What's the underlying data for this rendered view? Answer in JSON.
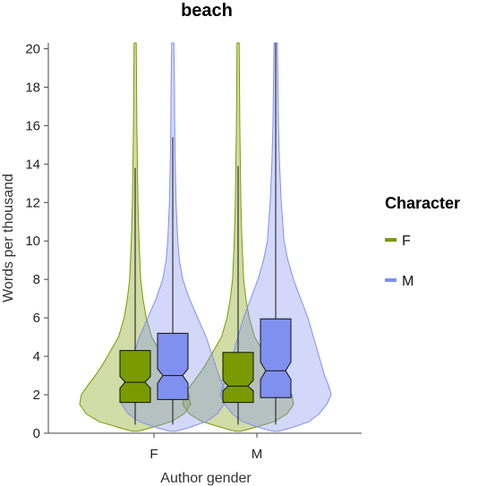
{
  "chart_data": {
    "type": "violin",
    "title": "beach",
    "xlabel": "Author gender",
    "ylabel": "Words per thousand",
    "ylim": [
      0,
      20.3
    ],
    "yticks": [
      0,
      2,
      4,
      6,
      8,
      10,
      12,
      14,
      16,
      18,
      20
    ],
    "categories": [
      "F",
      "M"
    ],
    "legend": {
      "title": "Character",
      "position": "right",
      "entries": [
        {
          "label": "F",
          "color": "#7a9a01"
        },
        {
          "label": "M",
          "color": "#8090f0"
        }
      ]
    },
    "series": [
      {
        "name": "F",
        "color": "#7a9a01",
        "groups": [
          {
            "category": "F",
            "box": {
              "q1": 1.6,
              "median": 2.65,
              "q3": 4.3,
              "notch_low": 2.35,
              "notch_high": 2.95,
              "whisker_low": 0.45,
              "whisker_high": 13.8
            },
            "violin": [
              [
                0.1,
                0.05
              ],
              [
                0.3,
                0.3
              ],
              [
                0.6,
                0.65
              ],
              [
                1.0,
                0.88
              ],
              [
                1.5,
                1.0
              ],
              [
                2.0,
                0.97
              ],
              [
                2.5,
                0.85
              ],
              [
                3.0,
                0.72
              ],
              [
                3.5,
                0.6
              ],
              [
                4.0,
                0.5
              ],
              [
                4.5,
                0.4
              ],
              [
                5.0,
                0.3
              ],
              [
                6.0,
                0.2
              ],
              [
                7.0,
                0.14
              ],
              [
                8.0,
                0.1
              ],
              [
                10.0,
                0.07
              ],
              [
                12.0,
                0.05
              ],
              [
                14.0,
                0.04
              ],
              [
                16.0,
                0.03
              ],
              [
                18.0,
                0.025
              ],
              [
                20.3,
                0.02
              ]
            ]
          },
          {
            "category": "M",
            "box": {
              "q1": 1.6,
              "median": 2.45,
              "q3": 4.2,
              "notch_low": 2.2,
              "notch_high": 2.75,
              "whisker_low": 0.45,
              "whisker_high": 13.9
            },
            "violin": [
              [
                0.1,
                0.05
              ],
              [
                0.3,
                0.3
              ],
              [
                0.6,
                0.65
              ],
              [
                1.0,
                0.88
              ],
              [
                1.5,
                1.0
              ],
              [
                2.0,
                0.97
              ],
              [
                2.5,
                0.85
              ],
              [
                3.0,
                0.72
              ],
              [
                3.5,
                0.6
              ],
              [
                4.0,
                0.5
              ],
              [
                4.5,
                0.4
              ],
              [
                5.0,
                0.3
              ],
              [
                6.0,
                0.2
              ],
              [
                7.0,
                0.14
              ],
              [
                8.0,
                0.1
              ],
              [
                10.0,
                0.07
              ],
              [
                12.0,
                0.05
              ],
              [
                14.0,
                0.04
              ],
              [
                16.0,
                0.03
              ],
              [
                18.0,
                0.025
              ],
              [
                20.3,
                0.02
              ]
            ]
          }
        ]
      },
      {
        "name": "M",
        "color": "#8090f0",
        "groups": [
          {
            "category": "F",
            "box": {
              "q1": 1.75,
              "median": 3.0,
              "q3": 5.2,
              "notch_low": 2.6,
              "notch_high": 3.35,
              "whisker_low": 0.45,
              "whisker_high": 15.4
            },
            "violin": [
              [
                0.1,
                0.05
              ],
              [
                0.3,
                0.3
              ],
              [
                0.6,
                0.6
              ],
              [
                1.0,
                0.8
              ],
              [
                1.5,
                0.92
              ],
              [
                2.0,
                0.95
              ],
              [
                2.5,
                0.9
              ],
              [
                3.0,
                0.83
              ],
              [
                4.0,
                0.72
              ],
              [
                5.0,
                0.6
              ],
              [
                6.0,
                0.45
              ],
              [
                7.0,
                0.3
              ],
              [
                8.0,
                0.18
              ],
              [
                9.0,
                0.12
              ],
              [
                10.0,
                0.09
              ],
              [
                12.0,
                0.06
              ],
              [
                14.0,
                0.045
              ],
              [
                16.0,
                0.035
              ],
              [
                18.0,
                0.03
              ],
              [
                20.3,
                0.02
              ]
            ]
          },
          {
            "category": "M",
            "box": {
              "q1": 1.85,
              "median": 3.25,
              "q3": 5.95,
              "notch_low": 2.8,
              "notch_high": 3.7,
              "whisker_low": 0.45,
              "whisker_high": 20.3
            },
            "violin": [
              [
                0.1,
                0.05
              ],
              [
                0.3,
                0.3
              ],
              [
                0.6,
                0.6
              ],
              [
                1.0,
                0.78
              ],
              [
                1.5,
                0.92
              ],
              [
                2.0,
                1.0
              ],
              [
                2.5,
                0.95
              ],
              [
                3.0,
                0.88
              ],
              [
                4.0,
                0.78
              ],
              [
                5.0,
                0.68
              ],
              [
                6.0,
                0.58
              ],
              [
                7.0,
                0.45
              ],
              [
                8.0,
                0.32
              ],
              [
                9.0,
                0.22
              ],
              [
                10.0,
                0.15
              ],
              [
                12.0,
                0.1
              ],
              [
                14.0,
                0.07
              ],
              [
                16.0,
                0.05
              ],
              [
                18.0,
                0.04
              ],
              [
                20.3,
                0.03
              ]
            ]
          }
        ]
      }
    ]
  }
}
